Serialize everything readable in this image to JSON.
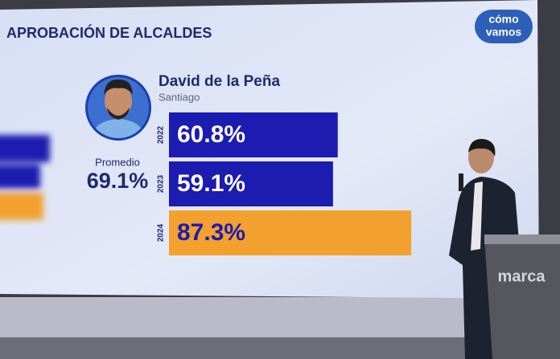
{
  "chart_data": {
    "type": "bar",
    "orientation": "horizontal",
    "title": "APROBACIÓN DE ALCALDES",
    "subject": "David de la Peña",
    "subtitle": "Santiago",
    "categories": [
      "2022",
      "2023",
      "2024"
    ],
    "values": [
      60.8,
      59.1,
      87.3
    ],
    "value_labels": [
      "60.8%",
      "59.1%",
      "87.3%"
    ],
    "colors": [
      "#1c1cb0",
      "#1c1cb0",
      "#f2a12e"
    ],
    "average": {
      "label": "Promedio",
      "value": 69.1,
      "value_label": "69.1%"
    }
  },
  "scene": {
    "logo": [
      "cómo",
      "vamos"
    ],
    "podium": "marca"
  }
}
